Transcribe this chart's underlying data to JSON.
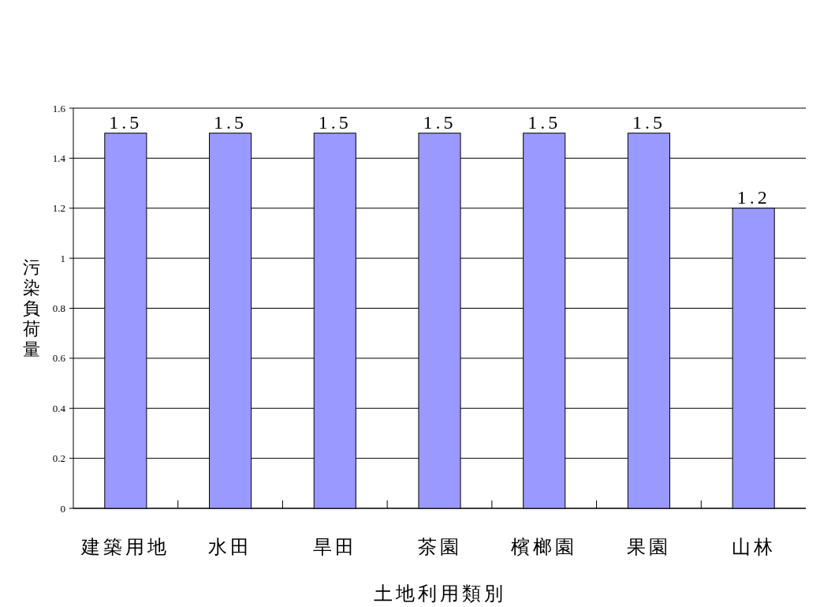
{
  "chart_data": {
    "type": "bar",
    "xlabel": "土地利用類別",
    "ylabel": "污染負荷量",
    "categories": [
      "建築用地",
      "水田",
      "旱田",
      "茶園",
      "檳榔園",
      "果園",
      "山林"
    ],
    "values": [
      1.5,
      1.5,
      1.5,
      1.5,
      1.5,
      1.5,
      1.2
    ],
    "color": "#9999ff",
    "ylim": [
      0,
      1.6
    ],
    "yticks": [
      0,
      0.2,
      0.4,
      0.6,
      0.8,
      1,
      1.2,
      1.4,
      1.6
    ],
    "grid": "y",
    "data_labels": true
  }
}
